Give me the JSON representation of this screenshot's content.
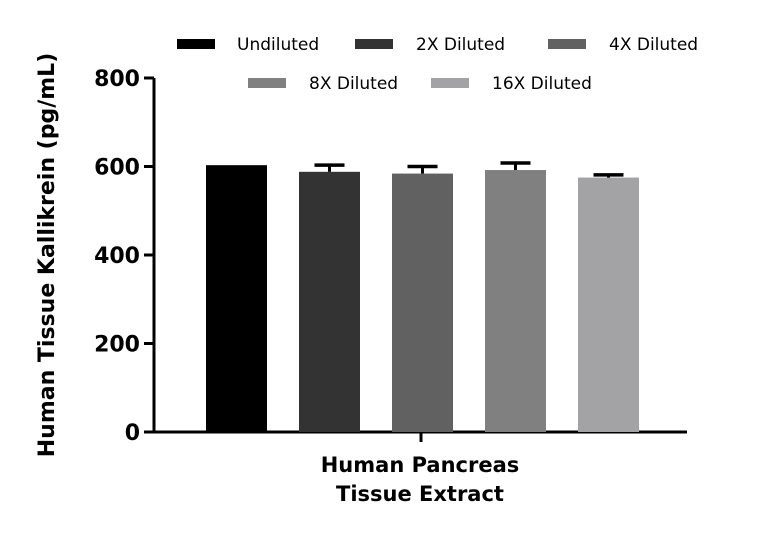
{
  "chart_data": {
    "type": "bar",
    "title": "",
    "xlabel": "Human Pancreas Tissue Extract",
    "xlabel_lines": [
      "Human Pancreas",
      "Tissue Extract"
    ],
    "ylabel": "Human Tissue Kallikrein (pg/mL)",
    "ylim": [
      0,
      800
    ],
    "yticks": [
      0,
      200,
      400,
      600,
      800
    ],
    "grid": false,
    "legend_position": "top",
    "categories": [
      "Human Pancreas Tissue Extract"
    ],
    "series": [
      {
        "name": "Undiluted",
        "values": [
          603
        ],
        "error": [
          0
        ],
        "color": "#000000"
      },
      {
        "name": "2X Diluted",
        "values": [
          588
        ],
        "error": [
          15
        ],
        "color": "#333333"
      },
      {
        "name": "4X Diluted",
        "values": [
          584
        ],
        "error": [
          16
        ],
        "color": "#616161"
      },
      {
        "name": "8X Diluted",
        "values": [
          592
        ],
        "error": [
          16
        ],
        "color": "#808080"
      },
      {
        "name": "16X Diluted",
        "values": [
          575
        ],
        "error": [
          6
        ],
        "color": "#a3a3a6"
      }
    ]
  }
}
